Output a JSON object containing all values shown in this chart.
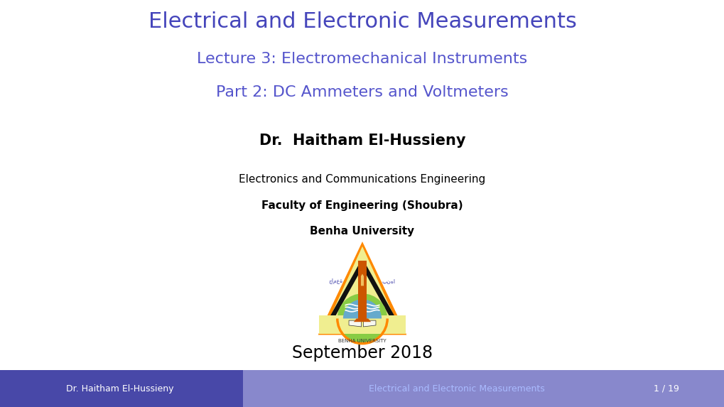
{
  "title": "Electrical and Electronic Measurements",
  "subtitle1": "Lecture 3: Electromechanical Instruments",
  "subtitle2": "Part 2: DC Ammeters and Voltmeters",
  "author": "Dr.  Haitham El-Hussieny",
  "dept": "Electronics and Communications Engineering",
  "faculty": "Faculty of Engineering (Shoubra)",
  "university": "Benha University",
  "date": "September 2018",
  "footer_left": "Dr. Haitham El-Hussieny",
  "footer_center": "Electrical and Electronic Measurements",
  "footer_right": "1 / 19",
  "title_color": "#4545bb",
  "subtitle_color": "#5555cc",
  "author_color": "#000000",
  "dept_color": "#000000",
  "date_color": "#000000",
  "footer_bg_left": "#4848a8",
  "footer_bg_right": "#8888cc",
  "footer_text_left": "#ffffff",
  "footer_text_center": "#aabbff",
  "footer_text_right": "#ffffff",
  "background_color": "#ffffff",
  "title_fontsize": 22,
  "subtitle_fontsize": 16,
  "author_fontsize": 15,
  "dept_fontsize": 11,
  "faculty_fontsize": 11,
  "date_fontsize": 17,
  "footer_fontsize": 9
}
